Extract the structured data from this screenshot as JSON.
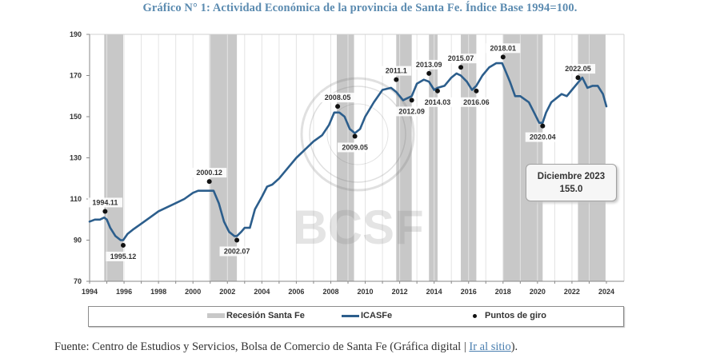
{
  "title": "Gráfico N° 1: Actividad Económica de la provincia de Santa Fe. Índice Base 1994=100.",
  "callout": {
    "line1": "Diciembre 2023",
    "line2": "155.0"
  },
  "legend": {
    "recession": "Recesión Santa Fe",
    "series": "ICASFe",
    "points": "Puntos de giro"
  },
  "source": {
    "prefix": "Fuente: Centro de Estudios y Servicios, Bolsa de Comercio de Santa Fe (Gráfica digital | ",
    "link": "Ir al sitio",
    "suffix": ")."
  },
  "watermark": {
    "text": "BCSF",
    "seal_top": "BOLSA DE COMERCIO",
    "seal_bottom": "DE SANTA FE"
  },
  "colors": {
    "line": "#2c5e8c",
    "recession": "#c8c8c8",
    "grid": "#dcdcdc",
    "title": "#5b8bb0"
  },
  "chart_data": {
    "type": "line",
    "title": "Gráfico N° 1: Actividad Económica de la provincia de Santa Fe. Índice Base 1994=100.",
    "xlabel": "",
    "ylabel": "",
    "ylim": [
      70,
      190
    ],
    "xlim": [
      1994,
      2024
    ],
    "yticks": [
      70,
      90,
      110,
      130,
      150,
      170,
      190
    ],
    "xticks": [
      1994,
      1996,
      1998,
      2000,
      2002,
      2004,
      2006,
      2008,
      2010,
      2012,
      2014,
      2016,
      2018,
      2020,
      2022,
      2024
    ],
    "grid": "vertical yearly lines",
    "legend_position": "bottom",
    "series": [
      {
        "name": "ICASFe",
        "x": [
          1994.0,
          1994.3,
          1994.6,
          1994.85,
          1995.0,
          1995.2,
          1995.5,
          1995.8,
          1995.95,
          1996.2,
          1996.5,
          1997.0,
          1997.5,
          1998.0,
          1998.5,
          1999.0,
          1999.5,
          2000.0,
          2000.3,
          2000.6,
          2000.9,
          2001.2,
          2001.5,
          2001.8,
          2002.1,
          2002.4,
          2002.55,
          2002.8,
          2003.0,
          2003.3,
          2003.6,
          2004.0,
          2004.3,
          2004.6,
          2005.0,
          2005.5,
          2006.0,
          2006.5,
          2007.0,
          2007.5,
          2007.9,
          2008.2,
          2008.5,
          2008.8,
          2009.1,
          2009.4,
          2009.7,
          2010.0,
          2010.5,
          2011.0,
          2011.5,
          2011.8,
          2012.2,
          2012.7,
          2013.0,
          2013.4,
          2013.7,
          2014.0,
          2014.2,
          2014.6,
          2015.0,
          2015.3,
          2015.55,
          2015.9,
          2016.2,
          2016.45,
          2016.8,
          2017.2,
          2017.6,
          2017.95,
          2018.1,
          2018.4,
          2018.7,
          2019.0,
          2019.5,
          2019.8,
          2020.1,
          2020.3,
          2020.5,
          2020.8,
          2021.1,
          2021.4,
          2021.7,
          2022.0,
          2022.4,
          2022.6,
          2022.9,
          2023.2,
          2023.5,
          2023.8,
          2024.0
        ],
        "y": [
          99,
          100,
          100,
          101,
          100,
          96,
          92,
          90,
          90,
          93,
          95,
          98,
          101,
          104,
          106,
          108,
          110,
          113,
          114,
          114,
          114,
          114,
          108,
          99,
          94,
          92,
          92,
          94,
          96,
          96,
          105,
          111,
          116,
          117,
          120,
          125,
          130,
          134,
          138,
          141,
          146,
          152,
          152,
          150,
          144,
          142,
          144,
          150,
          157,
          163,
          164,
          162,
          158,
          160,
          166,
          168,
          167,
          163,
          164,
          165,
          169,
          171,
          170,
          167,
          163,
          165,
          170,
          174,
          176,
          176,
          173,
          167,
          160,
          160,
          157,
          152,
          147,
          147,
          152,
          157,
          159,
          161,
          160,
          163,
          167,
          169,
          164,
          165,
          165,
          161,
          155
        ]
      }
    ],
    "recessions": [
      {
        "start": 1994.85,
        "end": 1995.95
      },
      {
        "start": 2000.95,
        "end": 2002.55
      },
      {
        "start": 2008.35,
        "end": 2009.35
      },
      {
        "start": 2011.8,
        "end": 2012.7
      },
      {
        "start": 2013.7,
        "end": 2014.2
      },
      {
        "start": 2015.55,
        "end": 2016.45
      },
      {
        "start": 2018.0,
        "end": 2020.3
      },
      {
        "start": 2022.35,
        "end": 2023.95
      }
    ],
    "turning_points": [
      {
        "label": "1994.11",
        "x": 1994.9,
        "y": 104,
        "pos": "above"
      },
      {
        "label": "1995.12",
        "x": 1995.95,
        "y": 87.5,
        "pos": "below"
      },
      {
        "label": "2000.12",
        "x": 2000.95,
        "y": 118.5,
        "pos": "above"
      },
      {
        "label": "2002.07",
        "x": 2002.55,
        "y": 90,
        "pos": "below"
      },
      {
        "label": "2008.05",
        "x": 2008.4,
        "y": 155,
        "pos": "above"
      },
      {
        "label": "2009.05",
        "x": 2009.4,
        "y": 140.5,
        "pos": "below"
      },
      {
        "label": "2011.1",
        "x": 2011.8,
        "y": 168,
        "pos": "above"
      },
      {
        "label": "2012.09",
        "x": 2012.7,
        "y": 158,
        "pos": "below"
      },
      {
        "label": "2013.09",
        "x": 2013.7,
        "y": 171,
        "pos": "above"
      },
      {
        "label": "2014.03",
        "x": 2014.2,
        "y": 162.5,
        "pos": "below"
      },
      {
        "label": "2015.07",
        "x": 2015.55,
        "y": 174,
        "pos": "above"
      },
      {
        "label": "2016.06",
        "x": 2016.45,
        "y": 162.5,
        "pos": "below"
      },
      {
        "label": "2018.01",
        "x": 2018.0,
        "y": 179,
        "pos": "above"
      },
      {
        "label": "2020.04",
        "x": 2020.3,
        "y": 145.5,
        "pos": "below"
      },
      {
        "label": "2022.05",
        "x": 2022.35,
        "y": 169,
        "pos": "above"
      }
    ],
    "annotation": {
      "text": "Diciembre 2023\n155.0",
      "x": 2023.95,
      "y": 155.0
    }
  }
}
